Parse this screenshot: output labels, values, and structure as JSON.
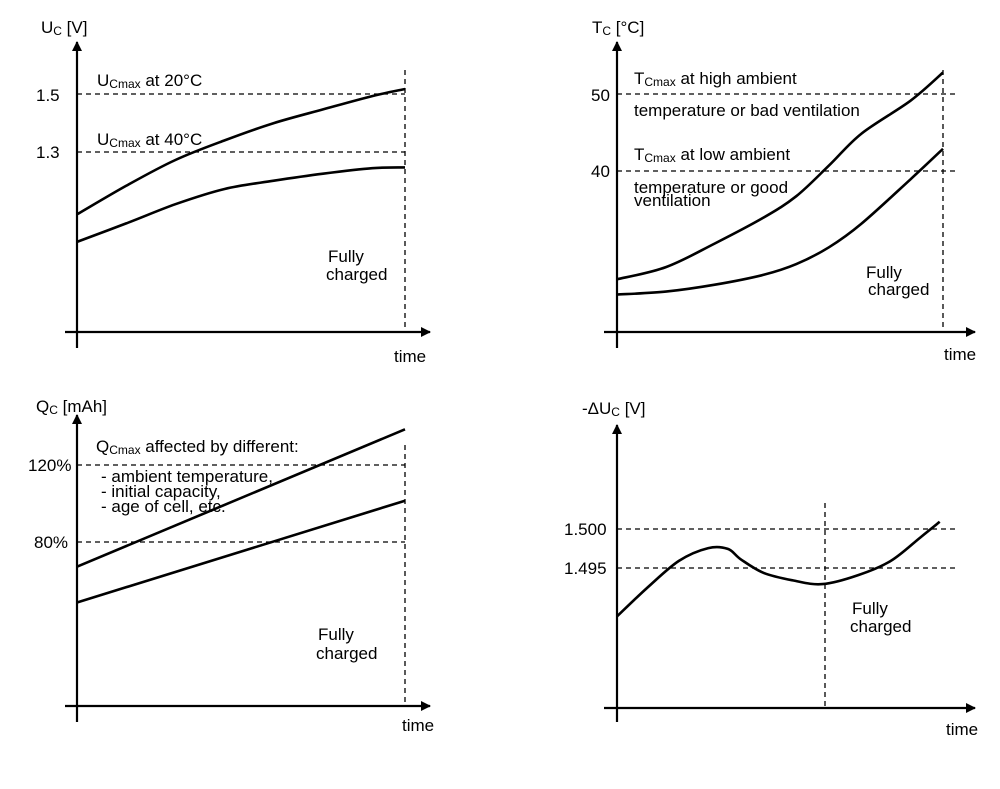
{
  "chart_data": [
    {
      "type": "line",
      "id": "voltage",
      "ylabel": "U",
      "ylabel_sub": "C",
      "ylabel_unit": " [V]",
      "xlabel": "time",
      "yticks": [
        "1.5",
        "1.3"
      ],
      "annotations": [
        {
          "main": "U",
          "sub": "Cmax",
          "rest": " at 20°C"
        },
        {
          "main": "U",
          "sub": "Cmax",
          "rest": " at 40°C"
        },
        {
          "main": "Fully"
        },
        {
          "main": "charged"
        }
      ],
      "x": [
        0,
        0.15,
        0.3,
        0.45,
        0.6,
        0.75,
        0.9,
        1.0
      ],
      "series": [
        {
          "values": [
            1.18,
            1.253,
            1.319,
            1.369,
            1.413,
            1.448,
            1.482,
            1.5
          ]
        },
        {
          "values": [
            1.11,
            1.157,
            1.206,
            1.245,
            1.266,
            1.284,
            1.298,
            1.3
          ]
        }
      ],
      "ylim": [
        0.88,
        1.62
      ]
    },
    {
      "type": "line",
      "id": "temperature",
      "ylabel": "T",
      "ylabel_sub": "C",
      "ylabel_unit": " [°C]",
      "xlabel": "time",
      "yticks": [
        "50",
        "40"
      ],
      "annotations": [
        {
          "main": "T",
          "sub": "Cmax",
          "rest": "  at high ambient"
        },
        {
          "main": "temperature or bad ventilation"
        },
        {
          "main": "T",
          "sub": "Cmax",
          "rest": "  at low ambient"
        },
        {
          "main": "temperature or good"
        },
        {
          "main": "ventilation"
        },
        {
          "main": "Fully"
        },
        {
          "main": "charged"
        }
      ],
      "x": [
        0,
        0.15,
        0.3,
        0.45,
        0.55,
        0.65,
        0.75,
        0.9,
        1.0
      ],
      "series": [
        {
          "values": [
            22.9,
            24.5,
            27.6,
            31.0,
            33.8,
            37.8,
            42.0,
            46.3,
            50.0
          ]
        },
        {
          "values": [
            20.9,
            21.3,
            22.2,
            23.5,
            24.9,
            27.1,
            30.2,
            36.0,
            40.0
          ]
        }
      ],
      "ylim": [
        16,
        54
      ]
    },
    {
      "type": "line",
      "id": "capacity",
      "ylabel": "Q",
      "ylabel_sub": "C",
      "ylabel_unit": "  [mAh]",
      "xlabel": "time",
      "yticks": [
        "120%",
        "80%"
      ],
      "annotations": [
        {
          "main": "Q",
          "sub": "Cmax",
          "rest": "   affected by different:"
        },
        {
          "main": "- ambient temperature,"
        },
        {
          "main": "- initial capacity,"
        },
        {
          "main": "- age of cell, etc."
        },
        {
          "main": "Fully"
        },
        {
          "main": "charged"
        }
      ],
      "x": [
        0,
        1.0
      ],
      "series": [
        {
          "values": [
            43,
            120
          ]
        },
        {
          "values": [
            23,
            80
          ]
        }
      ],
      "ylim": [
        -35,
        128
      ]
    },
    {
      "type": "line",
      "id": "delta-voltage",
      "ylabel": "-ΔU",
      "ylabel_sub": "C",
      "ylabel_unit": "  [V]",
      "xlabel": "time",
      "yticks": [
        "1.500",
        "1.495"
      ],
      "annotations": [
        {
          "main": "Fully"
        },
        {
          "main": "charged"
        }
      ],
      "x": [
        0,
        0.09,
        0.19,
        0.28,
        0.34,
        0.38,
        0.45,
        0.54,
        0.63,
        0.74,
        0.84,
        0.93,
        0.99
      ],
      "series": [
        {
          "values": [
            1.4908,
            1.4945,
            1.4982,
            1.4999,
            1.4998,
            1.4984,
            1.4966,
            1.4956,
            1.4951,
            1.4963,
            1.4982,
            1.5013,
            1.5034
          ]
        }
      ],
      "ylim": [
        1.4786,
        1.5163
      ]
    }
  ]
}
